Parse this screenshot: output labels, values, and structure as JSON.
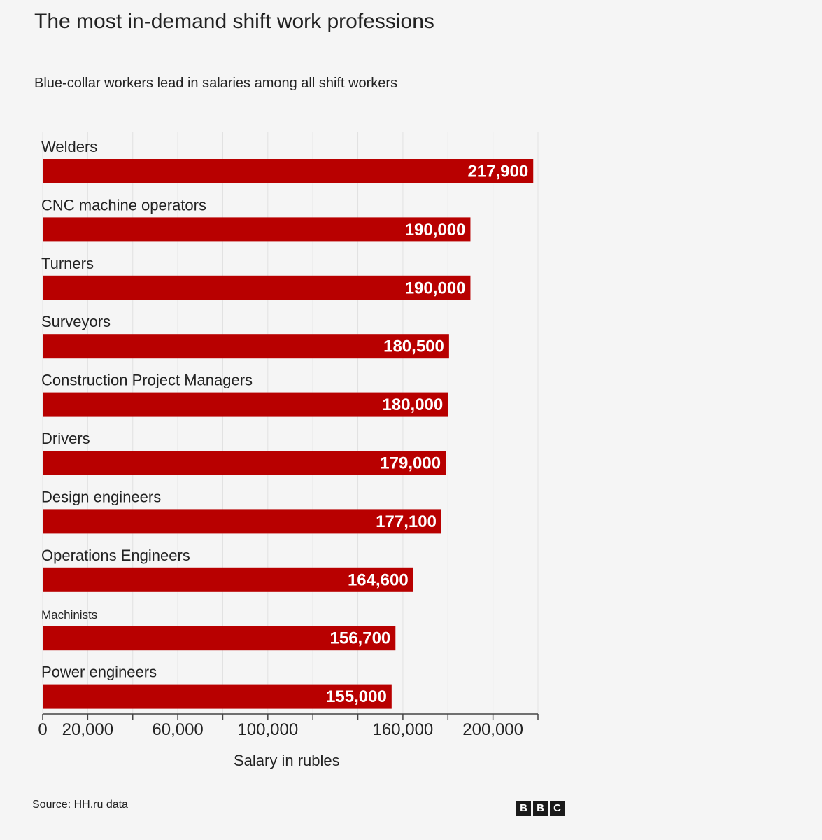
{
  "chart_data": {
    "type": "bar",
    "orientation": "horizontal",
    "title": "The most in-demand shift work professions",
    "subtitle": "Blue-collar workers lead in salaries among all shift workers",
    "xlabel": "Salary in rubles",
    "ylabel": "",
    "categories": [
      "Welders",
      "CNC machine operators",
      "Turners",
      "Surveyors",
      "Construction Project Managers",
      "Drivers",
      "Design engineers",
      "Operations Engineers",
      "Machinists",
      "Power engineers"
    ],
    "values": [
      217900,
      190000,
      190000,
      180500,
      180000,
      179000,
      177100,
      164600,
      156700,
      155000
    ],
    "value_labels": [
      "217,900",
      "190,000",
      "190,000",
      "180,500",
      "180,000",
      "179,000",
      "177,100",
      "164,600",
      "156,700",
      "155,000"
    ],
    "xlim": [
      0,
      220000
    ],
    "x_ticks": [
      0,
      20000,
      60000,
      100000,
      160000,
      200000
    ],
    "x_tick_labels": [
      "0",
      "20,000",
      "60,000",
      "100,000",
      "160,000",
      "200,000"
    ],
    "grid": true,
    "legend": "none",
    "bar_color": "#b80000",
    "source": "Source: HH.ru data"
  },
  "branding": {
    "logo_letters": [
      "B",
      "B",
      "C"
    ]
  }
}
